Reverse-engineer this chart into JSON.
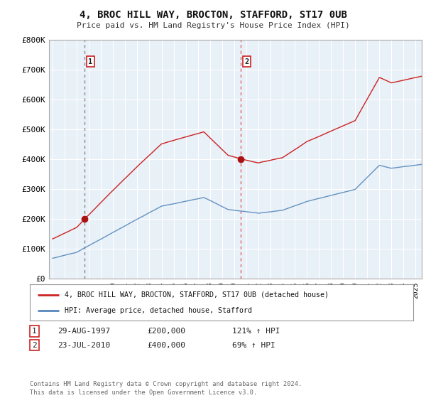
{
  "title": "4, BROC HILL WAY, BROCTON, STAFFORD, ST17 0UB",
  "subtitle": "Price paid vs. HM Land Registry's House Price Index (HPI)",
  "legend_line1": "4, BROC HILL WAY, BROCTON, STAFFORD, ST17 0UB (detached house)",
  "legend_line2": "HPI: Average price, detached house, Stafford",
  "footer": "Contains HM Land Registry data © Crown copyright and database right 2024.\nThis data is licensed under the Open Government Licence v3.0.",
  "sale1_date": "29-AUG-1997",
  "sale1_price": "£200,000",
  "sale1_hpi": "121% ↑ HPI",
  "sale1_year": 1997.65,
  "sale1_value": 200000,
  "sale2_date": "23-JUL-2010",
  "sale2_price": "£400,000",
  "sale2_hpi": "69% ↑ HPI",
  "sale2_year": 2010.55,
  "sale2_value": 400000,
  "hpi_color": "#5588bb",
  "price_color": "#cc2222",
  "dot_color": "#aa1111",
  "vline1_color": "#888888",
  "vline2_color": "#dd6666",
  "shade_color": "#dde8f0",
  "ylim": [
    0,
    800000
  ],
  "yticks": [
    0,
    100000,
    200000,
    300000,
    400000,
    500000,
    600000,
    700000,
    800000
  ],
  "ytick_labels": [
    "£0",
    "£100K",
    "£200K",
    "£300K",
    "£400K",
    "£500K",
    "£600K",
    "£700K",
    "£800K"
  ],
  "xmin": 1994.7,
  "xmax": 2025.5,
  "background_color": "#e8f0f8",
  "grid_color": "#ffffff"
}
